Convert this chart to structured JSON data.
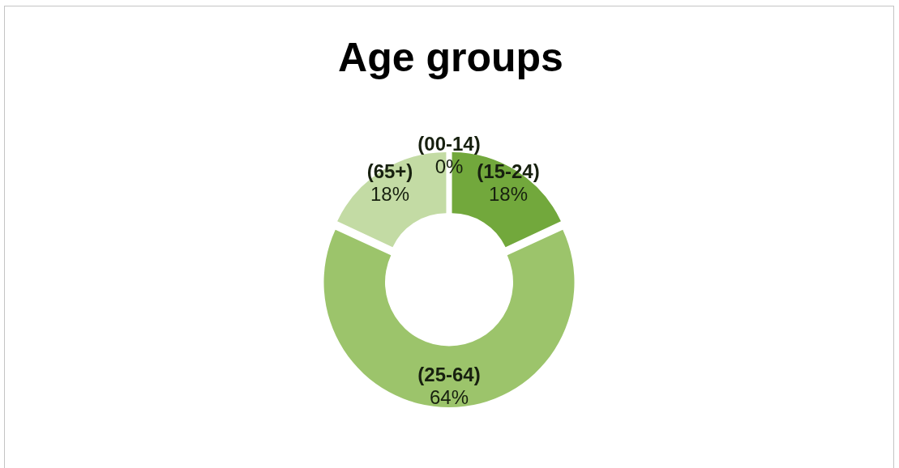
{
  "chart_data": {
    "type": "donut",
    "title": "Age groups",
    "categories": [
      "(00-14)",
      "(15-24)",
      "(25-64)",
      "(65+)"
    ],
    "values": [
      0,
      18,
      64,
      18
    ],
    "colors": [
      "#4e7d25",
      "#72a83c",
      "#9cc46b",
      "#c3dba4"
    ],
    "value_labels": [
      "0%",
      "18%",
      "64%",
      "18%"
    ]
  }
}
